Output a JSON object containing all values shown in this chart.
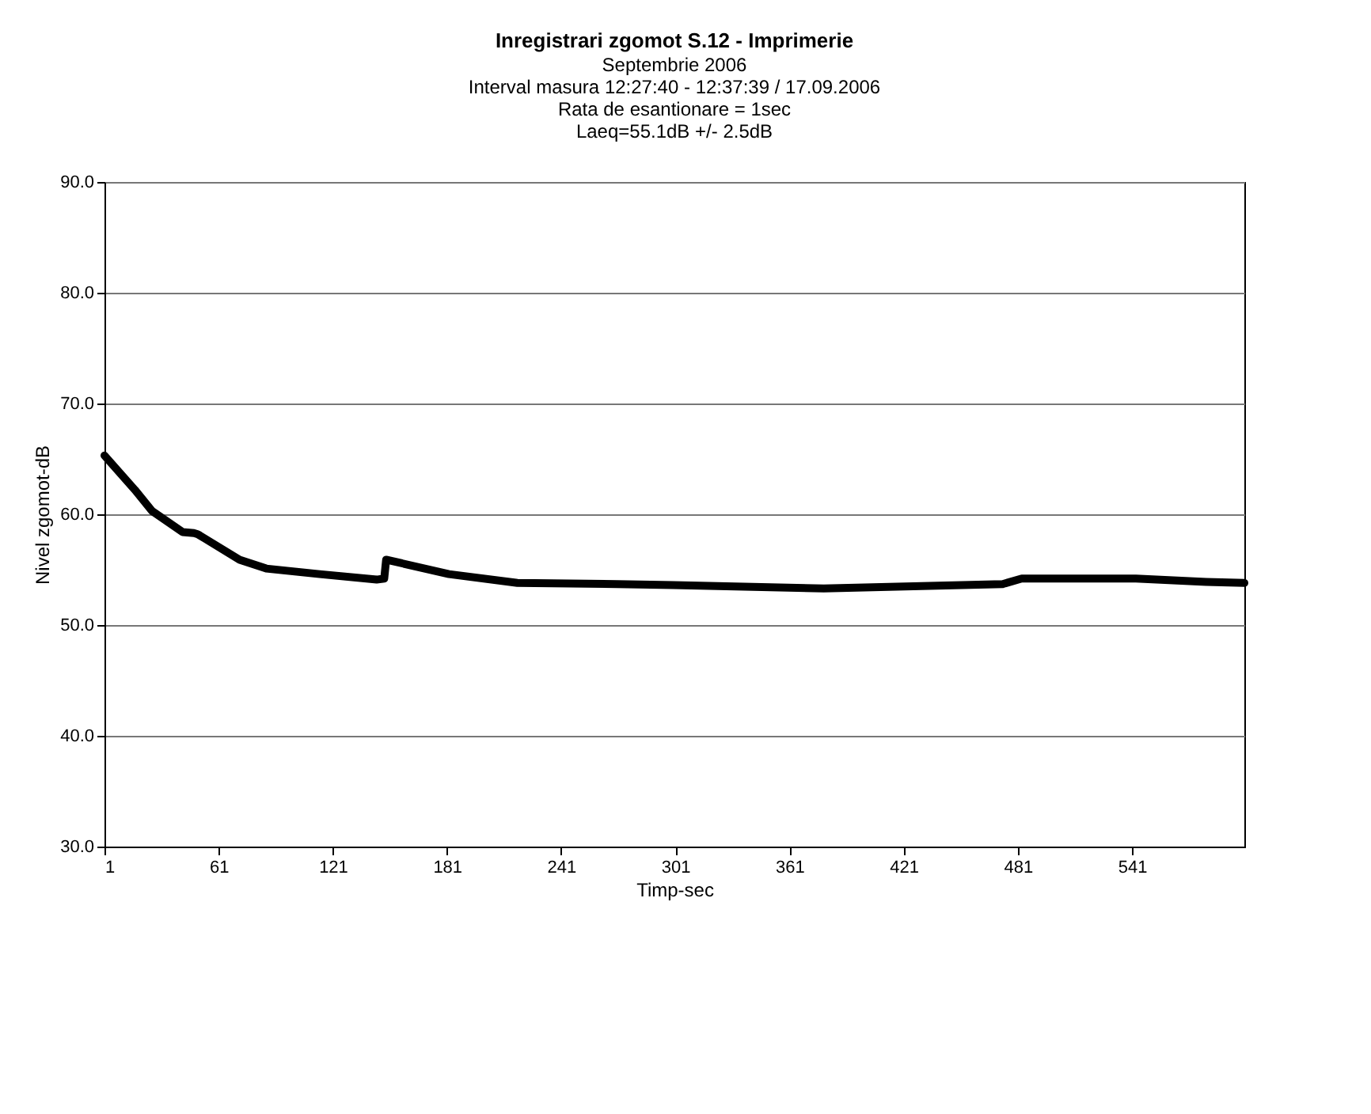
{
  "chart_data": {
    "type": "line",
    "title": "Inregistrari zgomot S.12 - Imprimerie",
    "subtitle": [
      "Septembrie 2006",
      "Interval masura 12:27:40 - 12:37:39 / 17.09.2006",
      "Rata de esantionare = 1sec",
      "Laeq=55.1dB +/- 2.5dB"
    ],
    "xlabel": "Timp-sec",
    "ylabel": "Nivel zgomot-dB",
    "x": [
      1,
      17,
      26,
      42,
      48,
      50,
      72,
      86,
      114,
      144,
      148,
      149,
      182,
      218,
      270,
      300,
      379,
      473,
      483,
      543,
      580,
      600
    ],
    "series": [
      {
        "color": "#000000",
        "values": [
          65.3,
          62.2,
          60.3,
          58.4,
          58.3,
          58.2,
          55.9,
          55.1,
          54.6,
          54.1,
          54.2,
          55.9,
          54.6,
          53.8,
          53.7,
          53.6,
          53.3,
          53.7,
          54.2,
          54.2,
          53.9,
          53.8
        ]
      }
    ],
    "xlim": [
      1,
      600
    ],
    "xticks": [
      1,
      61,
      121,
      181,
      241,
      301,
      361,
      421,
      481,
      541
    ],
    "ylim": [
      30,
      90
    ],
    "yticks": [
      {
        "value": 30,
        "label": "30.0"
      },
      {
        "value": 40,
        "label": "40.0"
      },
      {
        "value": 50,
        "label": "50.0"
      },
      {
        "value": 60,
        "label": "60.0"
      },
      {
        "value": 70,
        "label": "70.0"
      },
      {
        "value": 80,
        "label": "80.0"
      },
      {
        "value": 90,
        "label": "90.0"
      }
    ],
    "grid": "y",
    "marker": "none",
    "line_style": "solid",
    "legend": false
  }
}
